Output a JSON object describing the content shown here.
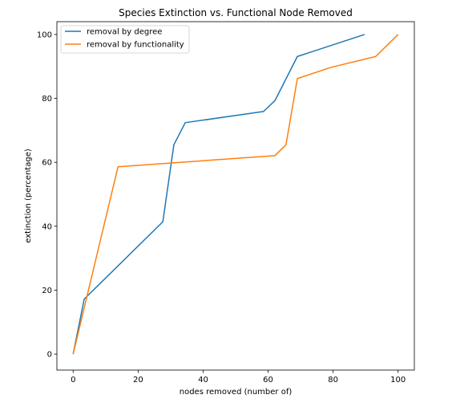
{
  "chart_data": {
    "type": "line",
    "title": "Species Extinction vs. Functional Node Removed",
    "xlabel": "nodes removed (number of)",
    "ylabel": "extinction (percentage)",
    "xlim": [
      -5,
      105
    ],
    "ylim": [
      -5,
      104
    ],
    "xticks": [
      0,
      20,
      40,
      60,
      80,
      100
    ],
    "yticks": [
      0,
      20,
      40,
      60,
      80,
      100
    ],
    "grid": false,
    "legend_position": "top-left",
    "series": [
      {
        "name": "removal by degree",
        "color": "#1f77b4",
        "x": [
          0,
          3.4,
          27.6,
          31.0,
          34.5,
          58.6,
          62.1,
          69.0,
          89.7
        ],
        "y": [
          0,
          17.2,
          41.4,
          65.5,
          72.4,
          75.9,
          79.3,
          93.1,
          100
        ]
      },
      {
        "name": "removal by functionality",
        "color": "#ff7f0e",
        "x": [
          0,
          13.8,
          62.1,
          65.5,
          69.0,
          79.3,
          93.1,
          100
        ],
        "y": [
          0,
          58.6,
          62.1,
          65.5,
          86.2,
          89.7,
          93.1,
          100
        ]
      }
    ]
  }
}
